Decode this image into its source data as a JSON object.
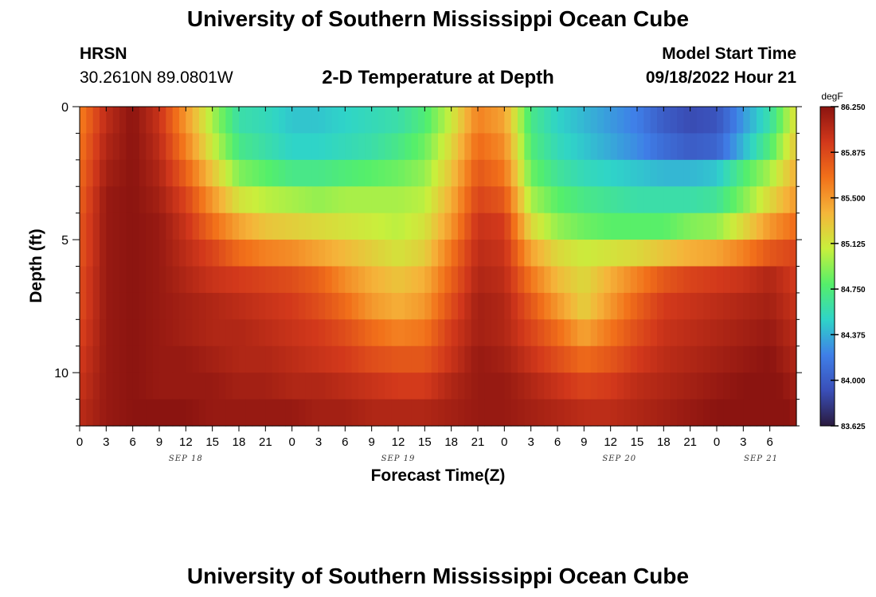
{
  "header": {
    "title": "University of Southern Mississippi Ocean Cube",
    "station": "HRSN",
    "coords": "30.2610N  89.0801W",
    "chart_title": "2-D Temperature at Depth",
    "start_label": "Model Start Time",
    "start_value": "09/18/2022 Hour 21"
  },
  "footer": {
    "title": "University of Southern Mississippi Ocean Cube"
  },
  "colors": {
    "scale": [
      "#2a1a3e",
      "#3a4fb8",
      "#3f7fe8",
      "#2fd4c8",
      "#55ef6a",
      "#c9ef3c",
      "#f5b53a",
      "#f2711a",
      "#d2381b",
      "#8b1410"
    ]
  },
  "chart_data": {
    "type": "heatmap",
    "title": "2-D Temperature at Depth",
    "xlabel": "Forecast Time(Z)",
    "ylabel": "Depth (ft)",
    "units": "degF",
    "xlim": [
      0,
      81
    ],
    "ylim": [
      0,
      12
    ],
    "x_ticks": [
      "0",
      "3",
      "6",
      "9",
      "12",
      "15",
      "18",
      "21",
      "0",
      "3",
      "6",
      "9",
      "12",
      "15",
      "18",
      "21",
      "0",
      "3",
      "6",
      "9",
      "12",
      "15",
      "18",
      "21",
      "0",
      "3",
      "6"
    ],
    "y_ticks": [
      "0",
      "5",
      "10"
    ],
    "y_tick_values": [
      0,
      5,
      10
    ],
    "date_labels": [
      {
        "label": "SEP 18",
        "hour": 12
      },
      {
        "label": "SEP 19",
        "hour": 36
      },
      {
        "label": "SEP 20",
        "hour": 61
      },
      {
        "label": "SEP 21",
        "hour": 77
      }
    ],
    "colorbar": {
      "min": 83.625,
      "max": 86.25,
      "ticks": [
        "86.250",
        "85.875",
        "85.500",
        "85.125",
        "84.750",
        "84.375",
        "84.000",
        "83.625"
      ],
      "tick_values": [
        86.25,
        85.875,
        85.5,
        85.125,
        84.75,
        84.375,
        84.0,
        83.625
      ]
    },
    "depths": [
      0.5,
      1.5,
      2.5,
      3.5,
      4.5,
      5.5,
      6.5,
      7.5,
      8.5,
      9.5,
      10.5,
      11.5
    ],
    "hours": [
      0,
      3,
      6,
      9,
      12,
      15,
      18,
      21,
      24,
      27,
      30,
      33,
      36,
      39,
      42,
      45,
      48,
      51,
      54,
      57,
      60,
      63,
      66,
      69,
      72,
      75,
      78,
      81
    ],
    "values": [
      [
        85.6,
        86.05,
        86.25,
        86.0,
        85.5,
        85.0,
        84.6,
        84.55,
        84.45,
        84.45,
        84.5,
        84.55,
        84.6,
        84.75,
        85.1,
        85.6,
        85.45,
        84.7,
        84.5,
        84.4,
        84.3,
        84.2,
        84.0,
        83.9,
        83.95,
        84.3,
        84.6,
        85.2
      ],
      [
        85.65,
        86.1,
        86.25,
        86.05,
        85.6,
        85.1,
        84.7,
        84.6,
        84.5,
        84.5,
        84.55,
        84.6,
        84.7,
        84.85,
        85.2,
        85.7,
        85.55,
        84.75,
        84.55,
        84.45,
        84.35,
        84.25,
        84.1,
        84.0,
        84.05,
        84.4,
        84.75,
        85.3
      ],
      [
        85.7,
        86.15,
        86.25,
        86.1,
        85.75,
        85.3,
        84.9,
        84.8,
        84.7,
        84.7,
        84.75,
        84.8,
        84.85,
        84.95,
        85.3,
        85.8,
        85.65,
        84.85,
        84.65,
        84.55,
        84.5,
        84.45,
        84.4,
        84.4,
        84.45,
        84.75,
        85.0,
        85.4
      ],
      [
        85.75,
        86.2,
        86.25,
        86.15,
        85.9,
        85.5,
        85.15,
        85.05,
        85.0,
        84.95,
        85.0,
        85.0,
        85.0,
        85.05,
        85.4,
        85.9,
        85.8,
        85.0,
        84.8,
        84.7,
        84.65,
        84.6,
        84.6,
        84.6,
        84.65,
        84.9,
        85.2,
        85.5
      ],
      [
        85.8,
        86.2,
        86.25,
        86.2,
        86.0,
        85.7,
        85.45,
        85.3,
        85.25,
        85.2,
        85.15,
        85.1,
        85.05,
        85.15,
        85.5,
        86.0,
        85.95,
        85.2,
        84.95,
        84.85,
        84.8,
        84.8,
        84.8,
        84.9,
        84.95,
        85.2,
        85.5,
        85.7
      ],
      [
        85.8,
        86.2,
        86.25,
        86.2,
        86.05,
        85.9,
        85.7,
        85.6,
        85.55,
        85.45,
        85.35,
        85.25,
        85.15,
        85.25,
        85.65,
        86.05,
        86.0,
        85.45,
        85.2,
        85.1,
        85.15,
        85.2,
        85.3,
        85.4,
        85.45,
        85.6,
        85.8,
        85.9
      ],
      [
        85.85,
        86.2,
        86.25,
        86.2,
        86.1,
        86.0,
        85.95,
        85.9,
        85.85,
        85.75,
        85.55,
        85.4,
        85.3,
        85.4,
        85.75,
        86.1,
        86.05,
        85.65,
        85.35,
        85.2,
        85.4,
        85.6,
        85.8,
        85.9,
        85.95,
        86.0,
        86.1,
        85.95
      ],
      [
        85.85,
        86.2,
        86.25,
        86.2,
        86.15,
        86.1,
        86.05,
        86.0,
        85.95,
        85.85,
        85.7,
        85.5,
        85.4,
        85.5,
        85.85,
        86.15,
        86.1,
        85.8,
        85.5,
        85.25,
        85.5,
        85.75,
        85.95,
        86.0,
        86.05,
        86.1,
        86.15,
        86.0
      ],
      [
        85.9,
        86.2,
        86.25,
        86.2,
        86.15,
        86.1,
        86.1,
        86.05,
        86.0,
        85.95,
        85.85,
        85.7,
        85.6,
        85.65,
        85.95,
        86.15,
        86.1,
        85.9,
        85.7,
        85.45,
        85.65,
        85.85,
        86.0,
        86.05,
        86.1,
        86.15,
        86.2,
        86.05
      ],
      [
        85.95,
        86.2,
        86.25,
        86.2,
        86.2,
        86.15,
        86.1,
        86.1,
        86.05,
        86.0,
        85.95,
        85.85,
        85.8,
        85.8,
        86.0,
        86.2,
        86.15,
        86.0,
        85.85,
        85.7,
        85.8,
        85.95,
        86.05,
        86.1,
        86.15,
        86.2,
        86.25,
        86.1
      ],
      [
        86.0,
        86.2,
        86.25,
        86.2,
        86.2,
        86.2,
        86.15,
        86.15,
        86.1,
        86.1,
        86.05,
        86.0,
        85.95,
        85.95,
        86.1,
        86.2,
        86.2,
        86.1,
        86.0,
        85.9,
        85.95,
        86.05,
        86.1,
        86.15,
        86.2,
        86.25,
        86.3,
        86.15
      ],
      [
        86.05,
        86.2,
        86.25,
        86.25,
        86.25,
        86.2,
        86.2,
        86.2,
        86.2,
        86.15,
        86.15,
        86.1,
        86.1,
        86.1,
        86.15,
        86.2,
        86.2,
        86.15,
        86.1,
        86.05,
        86.05,
        86.1,
        86.15,
        86.2,
        86.25,
        86.3,
        86.35,
        86.2
      ]
    ]
  }
}
